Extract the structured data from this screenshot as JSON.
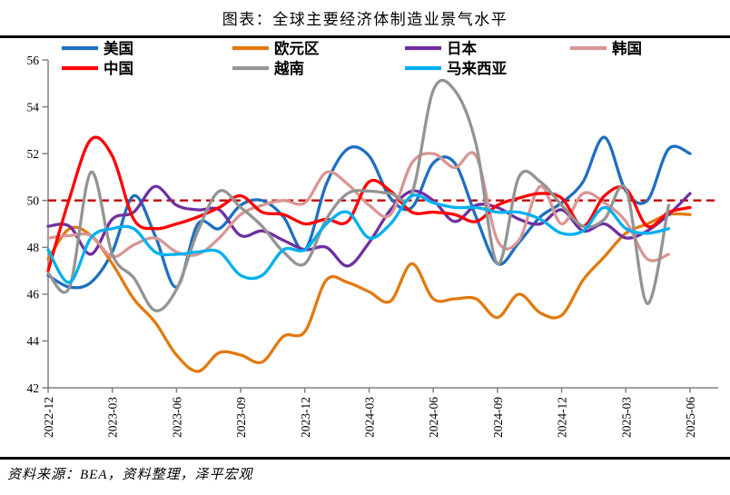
{
  "title": "图表：全球主要经济体制造业景气水平",
  "source_note": "资料来源：BEA，资料整理，泽平宏观",
  "chart_data": {
    "type": "line",
    "title": "图表：全球主要经济体制造业景气水平",
    "xlabel": "",
    "ylabel": "",
    "ylim": [
      42,
      56
    ],
    "y_ticks": [
      56,
      54,
      52,
      50,
      48,
      46,
      44,
      42
    ],
    "x_tick_labels": [
      "2022-12",
      "2023-03",
      "2023-06",
      "2023-09",
      "2023-12",
      "2024-03",
      "2024-06",
      "2024-09",
      "2024-12",
      "2025-03",
      "2025-06"
    ],
    "x_tick_month_indices": [
      0,
      3,
      6,
      9,
      12,
      15,
      18,
      21,
      24,
      27,
      30
    ],
    "months_total": 30,
    "grid": false,
    "legend_position": "top",
    "axis_color": "#808080",
    "reference_line": {
      "value": 50,
      "color": "#c00000",
      "style": "dashed"
    },
    "series": [
      {
        "key": "us",
        "name": "美国",
        "color": "#1f6fc0",
        "values": [
          46.8,
          46.3,
          46.5,
          47.8,
          50.2,
          48.5,
          46.3,
          49.0,
          48.8,
          49.8,
          50.0,
          49.3,
          47.9,
          50.7,
          52.2,
          51.9,
          50.1,
          49.7,
          51.6,
          51.6,
          49.3,
          47.3,
          48.2,
          49.3,
          49.9,
          50.8,
          52.7,
          50.4,
          50.0,
          52.2,
          52.0
        ]
      },
      {
        "key": "eurozone",
        "name": "欧元区",
        "color": "#e2790f",
        "values": [
          47.5,
          48.8,
          48.5,
          47.3,
          45.8,
          44.8,
          43.4,
          42.7,
          43.5,
          43.4,
          43.1,
          44.2,
          44.4,
          46.6,
          46.5,
          46.1,
          45.7,
          47.3,
          45.8,
          45.8,
          45.8,
          45.0,
          46.0,
          45.2,
          45.1,
          46.6,
          47.6,
          48.6,
          49.0,
          49.4,
          49.4
        ]
      },
      {
        "key": "japan",
        "name": "日本",
        "color": "#7030a0",
        "values": [
          48.9,
          48.9,
          47.7,
          49.2,
          49.5,
          50.6,
          49.8,
          49.6,
          49.6,
          48.5,
          48.7,
          48.3,
          47.9,
          48.0,
          47.2,
          48.2,
          49.6,
          50.4,
          50.0,
          49.1,
          49.8,
          49.7,
          49.2,
          49.0,
          49.6,
          48.7,
          49.0,
          48.4,
          48.7,
          49.4,
          50.3
        ]
      },
      {
        "key": "korea",
        "name": "韩国",
        "color": "#d99694",
        "values": [
          48.4,
          48.5,
          48.5,
          47.6,
          48.1,
          48.4,
          47.8,
          47.7,
          48.4,
          49.4,
          49.8,
          50.0,
          49.9,
          51.2,
          50.7,
          49.8,
          49.4,
          51.6,
          52.0,
          51.4,
          51.9,
          48.3,
          48.3,
          50.6,
          49.0,
          50.3,
          49.9,
          49.1,
          47.5,
          47.7,
          null
        ]
      },
      {
        "key": "china",
        "name": "中国",
        "color": "#ff0000",
        "values": [
          47.0,
          50.1,
          52.6,
          51.9,
          49.2,
          48.8,
          49.0,
          49.3,
          49.7,
          50.2,
          49.5,
          49.4,
          49.0,
          49.2,
          49.1,
          50.8,
          50.4,
          49.5,
          49.5,
          49.4,
          49.1,
          49.8,
          50.1,
          50.3,
          50.1,
          48.9,
          50.2,
          50.5,
          48.9,
          49.5,
          49.7
        ]
      },
      {
        "key": "vietnam",
        "name": "越南",
        "color": "#949494",
        "values": [
          46.9,
          46.3,
          51.2,
          47.7,
          46.7,
          45.3,
          46.2,
          48.7,
          50.4,
          49.7,
          48.9,
          47.8,
          47.3,
          49.2,
          50.3,
          50.4,
          50.3,
          50.3,
          54.7,
          54.7,
          52.4,
          47.3,
          51.0,
          50.8,
          49.8,
          48.9,
          49.2,
          50.5,
          45.6,
          49.8,
          null
        ]
      },
      {
        "key": "malaysia",
        "name": "马来西亚",
        "color": "#00b0f0",
        "values": [
          47.9,
          46.5,
          48.4,
          48.8,
          48.8,
          47.8,
          47.7,
          47.8,
          47.8,
          46.8,
          46.8,
          47.9,
          47.9,
          49.0,
          49.5,
          48.4,
          49.0,
          50.2,
          49.9,
          49.7,
          49.7,
          49.5,
          49.5,
          49.2,
          48.6,
          48.7,
          49.7,
          48.8,
          48.6,
          48.8,
          null
        ]
      }
    ]
  }
}
